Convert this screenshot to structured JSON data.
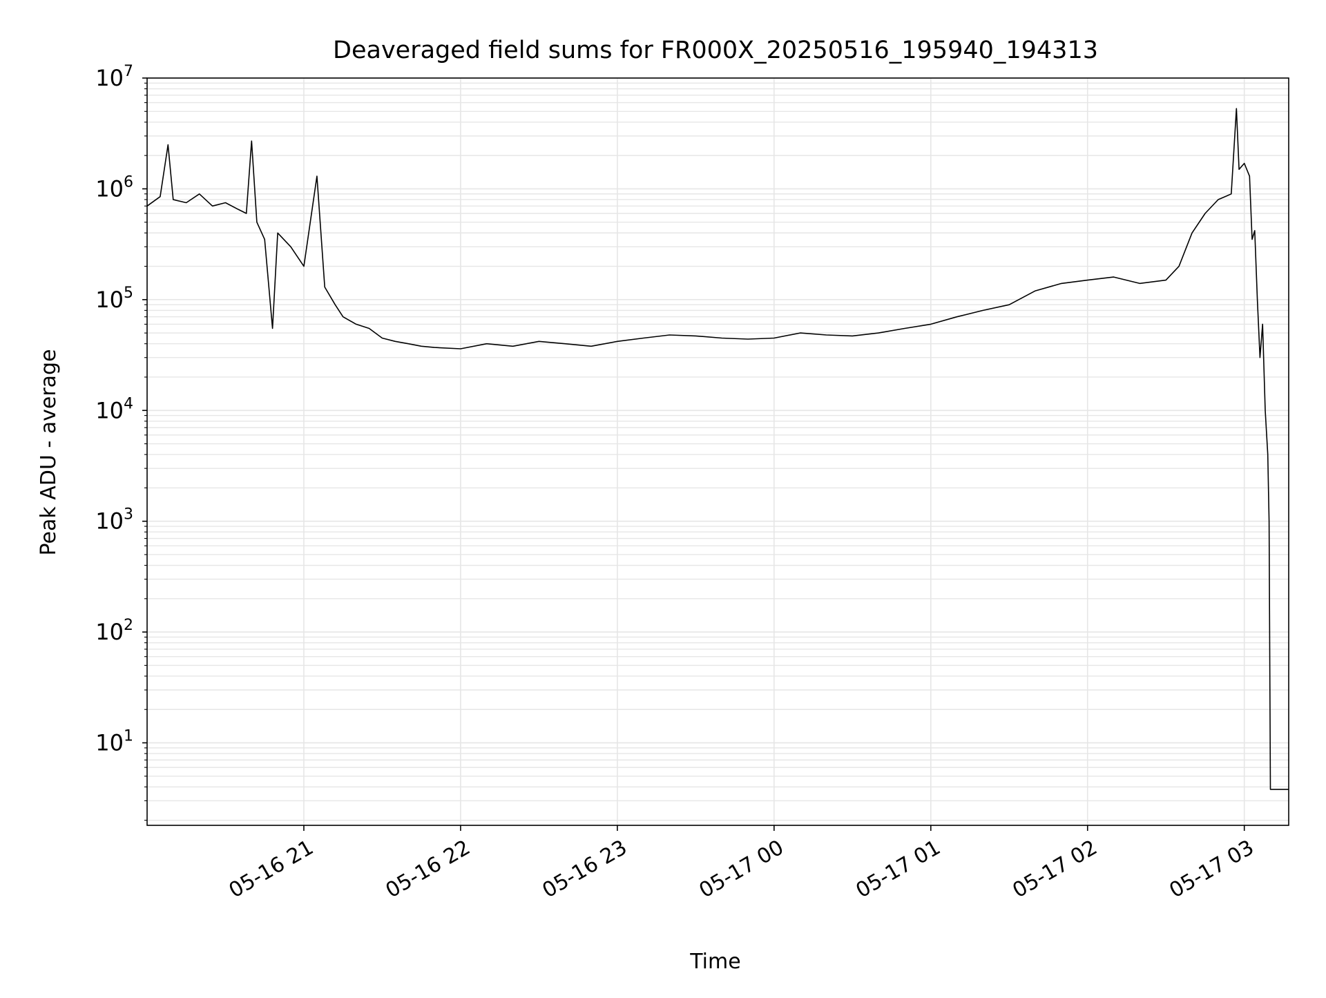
{
  "chart_data": {
    "type": "line",
    "title": "Deaveraged field sums for FR000X_20250516_195940_194313",
    "xlabel": "Time",
    "ylabel": "Peak ADU - average",
    "yscale": "log",
    "ylim": [
      1.8,
      10000000
    ],
    "xlim": [
      "2025-05-16 20:00",
      "2025-05-17 03:17"
    ],
    "grid": true,
    "line_color": "#000000",
    "grid_color": "#e6e6e6",
    "x_ticks": [
      {
        "value": "2025-05-16 21:00",
        "label": "05-16 21"
      },
      {
        "value": "2025-05-16 22:00",
        "label": "05-16 22"
      },
      {
        "value": "2025-05-16 23:00",
        "label": "05-16 23"
      },
      {
        "value": "2025-05-17 00:00",
        "label": "05-17 00"
      },
      {
        "value": "2025-05-17 01:00",
        "label": "05-17 01"
      },
      {
        "value": "2025-05-17 02:00",
        "label": "05-17 02"
      },
      {
        "value": "2025-05-17 03:00",
        "label": "05-17 03"
      }
    ],
    "y_ticks": [
      {
        "value": 10,
        "base": "10",
        "exp": "1"
      },
      {
        "value": 100,
        "base": "10",
        "exp": "2"
      },
      {
        "value": 1000,
        "base": "10",
        "exp": "3"
      },
      {
        "value": 10000,
        "base": "10",
        "exp": "4"
      },
      {
        "value": 100000,
        "base": "10",
        "exp": "5"
      },
      {
        "value": 1000000,
        "base": "10",
        "exp": "6"
      },
      {
        "value": 10000000,
        "base": "10",
        "exp": "7"
      }
    ],
    "series": [
      {
        "points": [
          [
            "2025-05-16 20:00",
            700000
          ],
          [
            "2025-05-16 20:05",
            850000
          ],
          [
            "2025-05-16 20:08",
            2500000
          ],
          [
            "2025-05-16 20:10",
            800000
          ],
          [
            "2025-05-16 20:15",
            750000
          ],
          [
            "2025-05-16 20:20",
            900000
          ],
          [
            "2025-05-16 20:25",
            700000
          ],
          [
            "2025-05-16 20:30",
            750000
          ],
          [
            "2025-05-16 20:35",
            650000
          ],
          [
            "2025-05-16 20:38",
            600000
          ],
          [
            "2025-05-16 20:40",
            2700000
          ],
          [
            "2025-05-16 20:42",
            500000
          ],
          [
            "2025-05-16 20:45",
            350000
          ],
          [
            "2025-05-16 20:48",
            55000
          ],
          [
            "2025-05-16 20:50",
            400000
          ],
          [
            "2025-05-16 20:55",
            300000
          ],
          [
            "2025-05-16 21:00",
            200000
          ],
          [
            "2025-05-16 21:05",
            1300000
          ],
          [
            "2025-05-16 21:08",
            130000
          ],
          [
            "2025-05-16 21:12",
            90000
          ],
          [
            "2025-05-16 21:15",
            70000
          ],
          [
            "2025-05-16 21:20",
            60000
          ],
          [
            "2025-05-16 21:25",
            55000
          ],
          [
            "2025-05-16 21:30",
            45000
          ],
          [
            "2025-05-16 21:35",
            42000
          ],
          [
            "2025-05-16 21:40",
            40000
          ],
          [
            "2025-05-16 21:45",
            38000
          ],
          [
            "2025-05-16 21:50",
            37000
          ],
          [
            "2025-05-16 22:00",
            36000
          ],
          [
            "2025-05-16 22:10",
            40000
          ],
          [
            "2025-05-16 22:20",
            38000
          ],
          [
            "2025-05-16 22:30",
            42000
          ],
          [
            "2025-05-16 22:40",
            40000
          ],
          [
            "2025-05-16 22:50",
            38000
          ],
          [
            "2025-05-16 23:00",
            42000
          ],
          [
            "2025-05-16 23:10",
            45000
          ],
          [
            "2025-05-16 23:20",
            48000
          ],
          [
            "2025-05-16 23:30",
            47000
          ],
          [
            "2025-05-16 23:40",
            45000
          ],
          [
            "2025-05-16 23:50",
            44000
          ],
          [
            "2025-05-17 00:00",
            45000
          ],
          [
            "2025-05-17 00:10",
            50000
          ],
          [
            "2025-05-17 00:20",
            48000
          ],
          [
            "2025-05-17 00:30",
            47000
          ],
          [
            "2025-05-17 00:40",
            50000
          ],
          [
            "2025-05-17 00:50",
            55000
          ],
          [
            "2025-05-17 01:00",
            60000
          ],
          [
            "2025-05-17 01:10",
            70000
          ],
          [
            "2025-05-17 01:20",
            80000
          ],
          [
            "2025-05-17 01:30",
            90000
          ],
          [
            "2025-05-17 01:40",
            120000
          ],
          [
            "2025-05-17 01:50",
            140000
          ],
          [
            "2025-05-17 02:00",
            150000
          ],
          [
            "2025-05-17 02:10",
            160000
          ],
          [
            "2025-05-17 02:20",
            140000
          ],
          [
            "2025-05-17 02:30",
            150000
          ],
          [
            "2025-05-17 02:35",
            200000
          ],
          [
            "2025-05-17 02:40",
            400000
          ],
          [
            "2025-05-17 02:45",
            600000
          ],
          [
            "2025-05-17 02:50",
            800000
          ],
          [
            "2025-05-17 02:55",
            900000
          ],
          [
            "2025-05-17 02:57",
            5300000
          ],
          [
            "2025-05-17 02:58",
            1500000
          ],
          [
            "2025-05-17 03:00",
            1700000
          ],
          [
            "2025-05-17 03:02",
            1300000
          ],
          [
            "2025-05-17 03:03",
            350000
          ],
          [
            "2025-05-17 03:04",
            420000
          ],
          [
            "2025-05-17 03:05",
            100000
          ],
          [
            "2025-05-17 03:06",
            30000
          ],
          [
            "2025-05-17 03:07",
            60000
          ],
          [
            "2025-05-17 03:08",
            10000
          ],
          [
            "2025-05-17 03:09",
            4000
          ],
          [
            "2025-05-17 03:09:30",
            1000
          ],
          [
            "2025-05-17 03:10",
            3.8
          ],
          [
            "2025-05-17 03:17",
            3.8
          ]
        ]
      }
    ]
  }
}
